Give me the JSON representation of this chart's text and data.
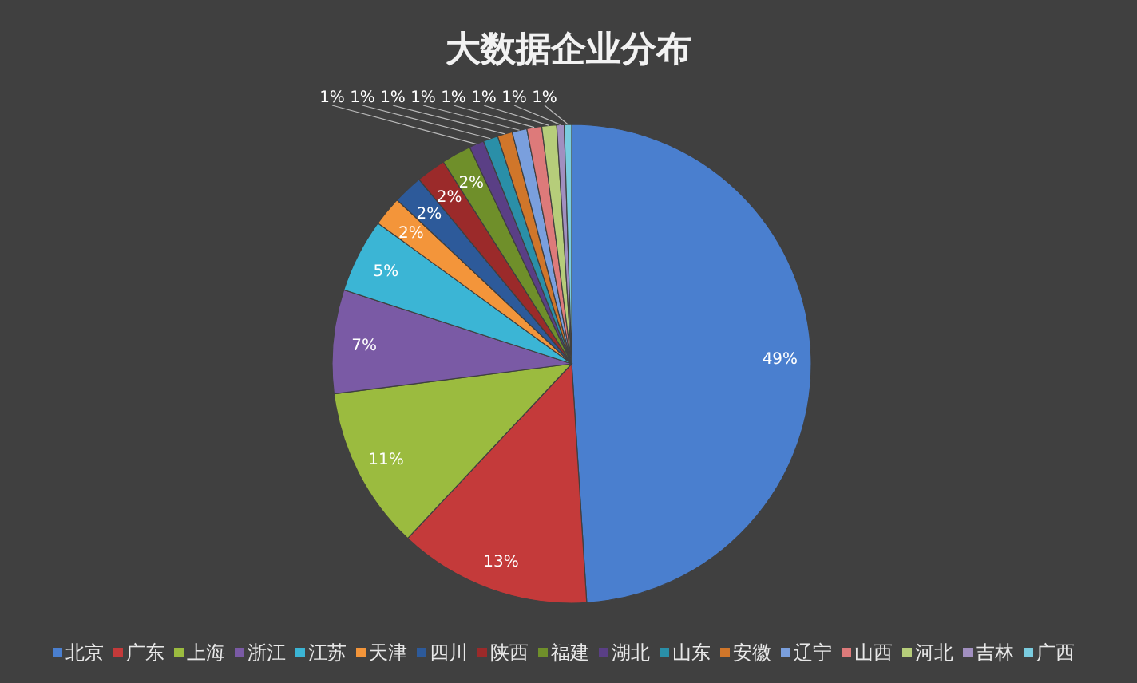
{
  "chart_data": {
    "type": "pie",
    "title": "大数据企业分布",
    "categories": [
      "北京",
      "广东",
      "上海",
      "浙江",
      "江苏",
      "天津",
      "四川",
      "陕西",
      "福建",
      "湖北",
      "山东",
      "安徽",
      "辽宁",
      "山西",
      "河北",
      "吉林",
      "广西"
    ],
    "values": [
      49,
      13,
      11,
      7,
      5,
      2,
      2,
      2,
      2,
      1,
      1,
      1,
      1,
      1,
      1,
      0.5,
      0.5
    ],
    "value_labels": [
      "49%",
      "13%",
      "11%",
      "7%",
      "5%",
      "2%",
      "2%",
      "2%",
      "2%",
      "1%",
      "1%",
      "1%",
      "1%",
      "1%",
      "1%",
      "1%",
      "1%"
    ],
    "colors": [
      "#4a7fcf",
      "#c43a3a",
      "#9bbb3f",
      "#7a5aa5",
      "#3bb5d5",
      "#f3953a",
      "#2d5a9a",
      "#9b2a2a",
      "#6f8f2a",
      "#5a3f85",
      "#2a8fa8",
      "#d0762a",
      "#7a9fdd",
      "#dd7a7a",
      "#b6cd7a",
      "#a18fc0",
      "#7accdf"
    ],
    "legend": "bottom"
  }
}
